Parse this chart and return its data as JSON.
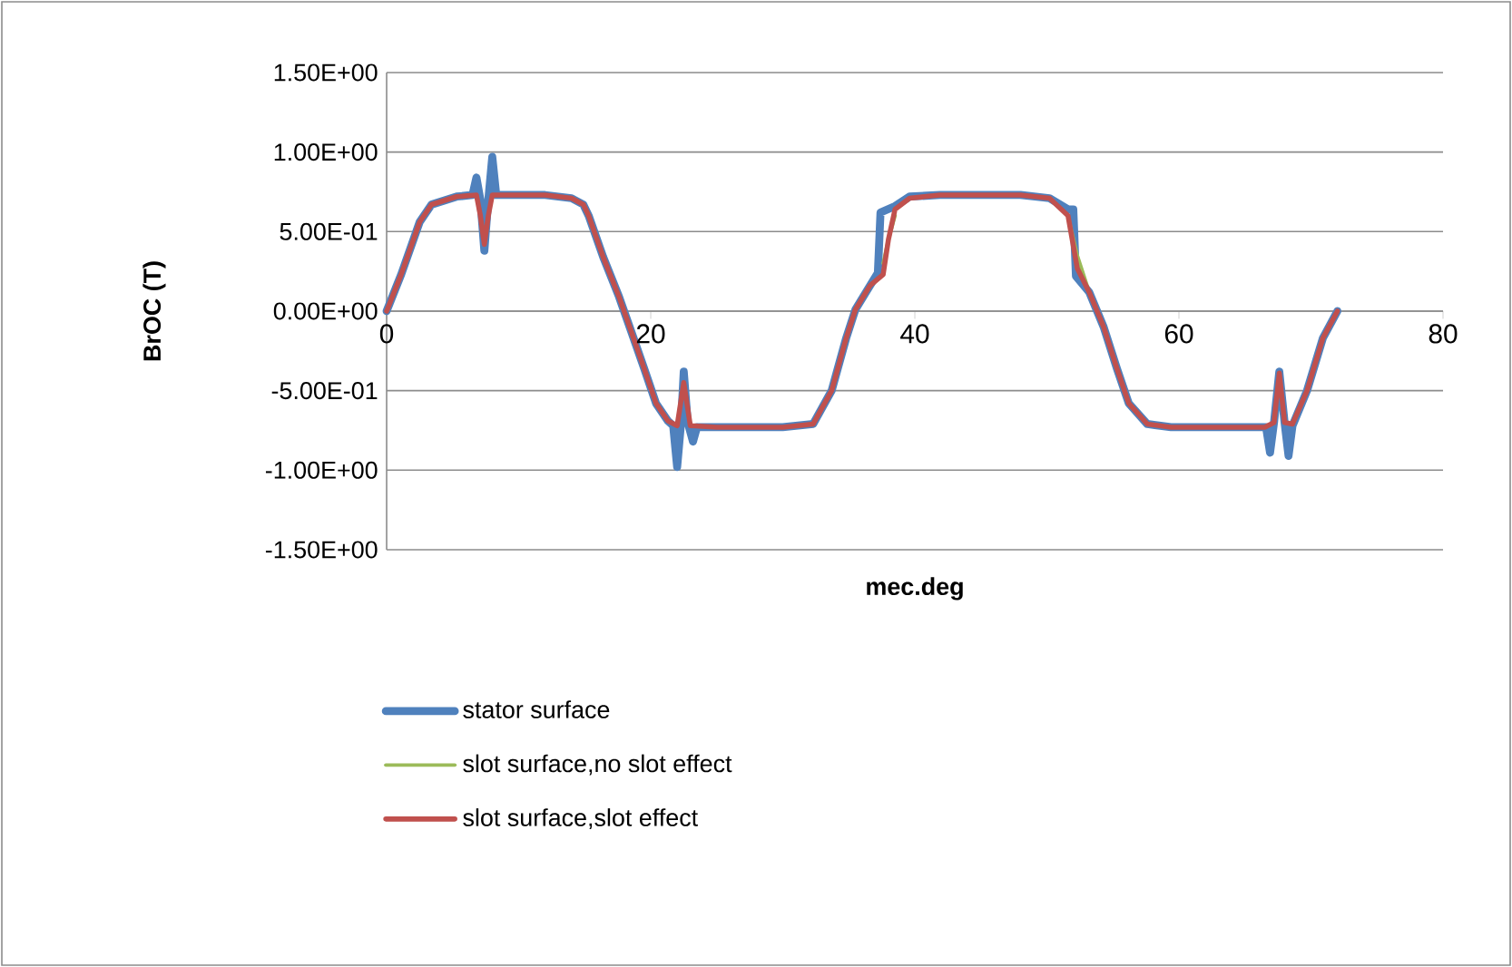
{
  "chart_data": {
    "type": "line",
    "xlabel": "mec.deg",
    "ylabel": "BrOC (T)",
    "xlim": [
      0,
      80
    ],
    "ylim": [
      -1.5,
      1.5
    ],
    "xticks": [
      0,
      20,
      40,
      60,
      80
    ],
    "yticks": [
      {
        "value": 1.5,
        "label": "1.50E+00"
      },
      {
        "value": 1.0,
        "label": "1.00E+00"
      },
      {
        "value": 0.5,
        "label": "5.00E-01"
      },
      {
        "value": 0,
        "label": "0.00E+00"
      },
      {
        "value": -0.5,
        "label": "-5.00E-01"
      },
      {
        "value": -1.0,
        "label": "-1.00E+00"
      },
      {
        "value": -1.5,
        "label": "-1.50E+00"
      }
    ],
    "grid": "y",
    "legend": "bottom",
    "series": [
      {
        "name": "stator surface",
        "color": "#4f81bd",
        "x": [
          0,
          1.1,
          2.5,
          3.4,
          5.3,
          6.5,
          6.8,
          7.1,
          7.4,
          7.7,
          8.0,
          8.3,
          12,
          14.0,
          14.9,
          15.3,
          16.4,
          17.6,
          18.7,
          19.5,
          20.4,
          21.3,
          21.7,
          22.0,
          22.3,
          22.5,
          22.8,
          23.2,
          23.5,
          25,
          30,
          32.3,
          33.7,
          34.8,
          35.5,
          36.6,
          37.2,
          37.4,
          38.5,
          39.6,
          41.9,
          48,
          50.2,
          51.6,
          52.0,
          52.2,
          53.2,
          54.3,
          55.3,
          56.2,
          57.6,
          59.4,
          66.6,
          66.9,
          67.2,
          67.6,
          68.0,
          68.3,
          68.6,
          69.7,
          70.9,
          72.0
        ],
        "values": [
          0,
          0.23,
          0.56,
          0.67,
          0.72,
          0.73,
          0.84,
          0.7,
          0.38,
          0.7,
          0.97,
          0.73,
          0.73,
          0.71,
          0.67,
          0.6,
          0.34,
          0.09,
          -0.17,
          -0.36,
          -0.58,
          -0.69,
          -0.72,
          -0.98,
          -0.7,
          -0.38,
          -0.7,
          -0.82,
          -0.73,
          -0.73,
          -0.73,
          -0.71,
          -0.5,
          -0.17,
          0.01,
          0.16,
          0.24,
          0.62,
          0.66,
          0.72,
          0.73,
          0.73,
          0.71,
          0.64,
          0.64,
          0.22,
          0.12,
          -0.1,
          -0.36,
          -0.58,
          -0.71,
          -0.73,
          -0.73,
          -0.89,
          -0.7,
          -0.38,
          -0.7,
          -0.91,
          -0.72,
          -0.5,
          -0.17,
          0
        ]
      },
      {
        "name": "slot surface,no slot effect",
        "color": "#9bbb59",
        "x": [
          37.6,
          38.0,
          38.5,
          45,
          51.6,
          52.3,
          53.2
        ],
        "values": [
          0.3,
          0.45,
          0.6,
          null,
          0.6,
          0.35,
          0.12
        ]
      },
      {
        "name": "slot surface,slot effect",
        "color": "#c0504d",
        "x": [
          0,
          1.1,
          2.5,
          3.4,
          5.3,
          6.8,
          7.1,
          7.4,
          7.7,
          8.0,
          12,
          14.0,
          14.9,
          15.3,
          16.4,
          17.6,
          18.7,
          19.5,
          20.4,
          21.3,
          22.0,
          22.5,
          23.0,
          25,
          30,
          32.3,
          33.7,
          34.8,
          35.5,
          36.6,
          37.6,
          38.0,
          38.5,
          39.6,
          41.9,
          48,
          50.2,
          51.6,
          52.3,
          53.2,
          54.3,
          55.3,
          56.2,
          57.6,
          59.4,
          66.5,
          67.2,
          67.6,
          68.0,
          68.6,
          69.7,
          70.9,
          72.0
        ],
        "values": [
          0,
          0.23,
          0.56,
          0.67,
          0.72,
          0.73,
          0.6,
          0.42,
          0.6,
          0.73,
          0.73,
          0.71,
          0.67,
          0.6,
          0.34,
          0.09,
          -0.17,
          -0.36,
          -0.58,
          -0.69,
          -0.72,
          -0.45,
          -0.72,
          -0.73,
          -0.73,
          -0.71,
          -0.5,
          -0.17,
          0.01,
          0.16,
          0.23,
          0.45,
          0.64,
          0.71,
          0.73,
          0.73,
          0.71,
          0.6,
          0.27,
          0.12,
          -0.1,
          -0.36,
          -0.58,
          -0.71,
          -0.73,
          -0.73,
          -0.7,
          -0.39,
          -0.7,
          -0.71,
          -0.5,
          -0.17,
          0
        ]
      }
    ]
  }
}
